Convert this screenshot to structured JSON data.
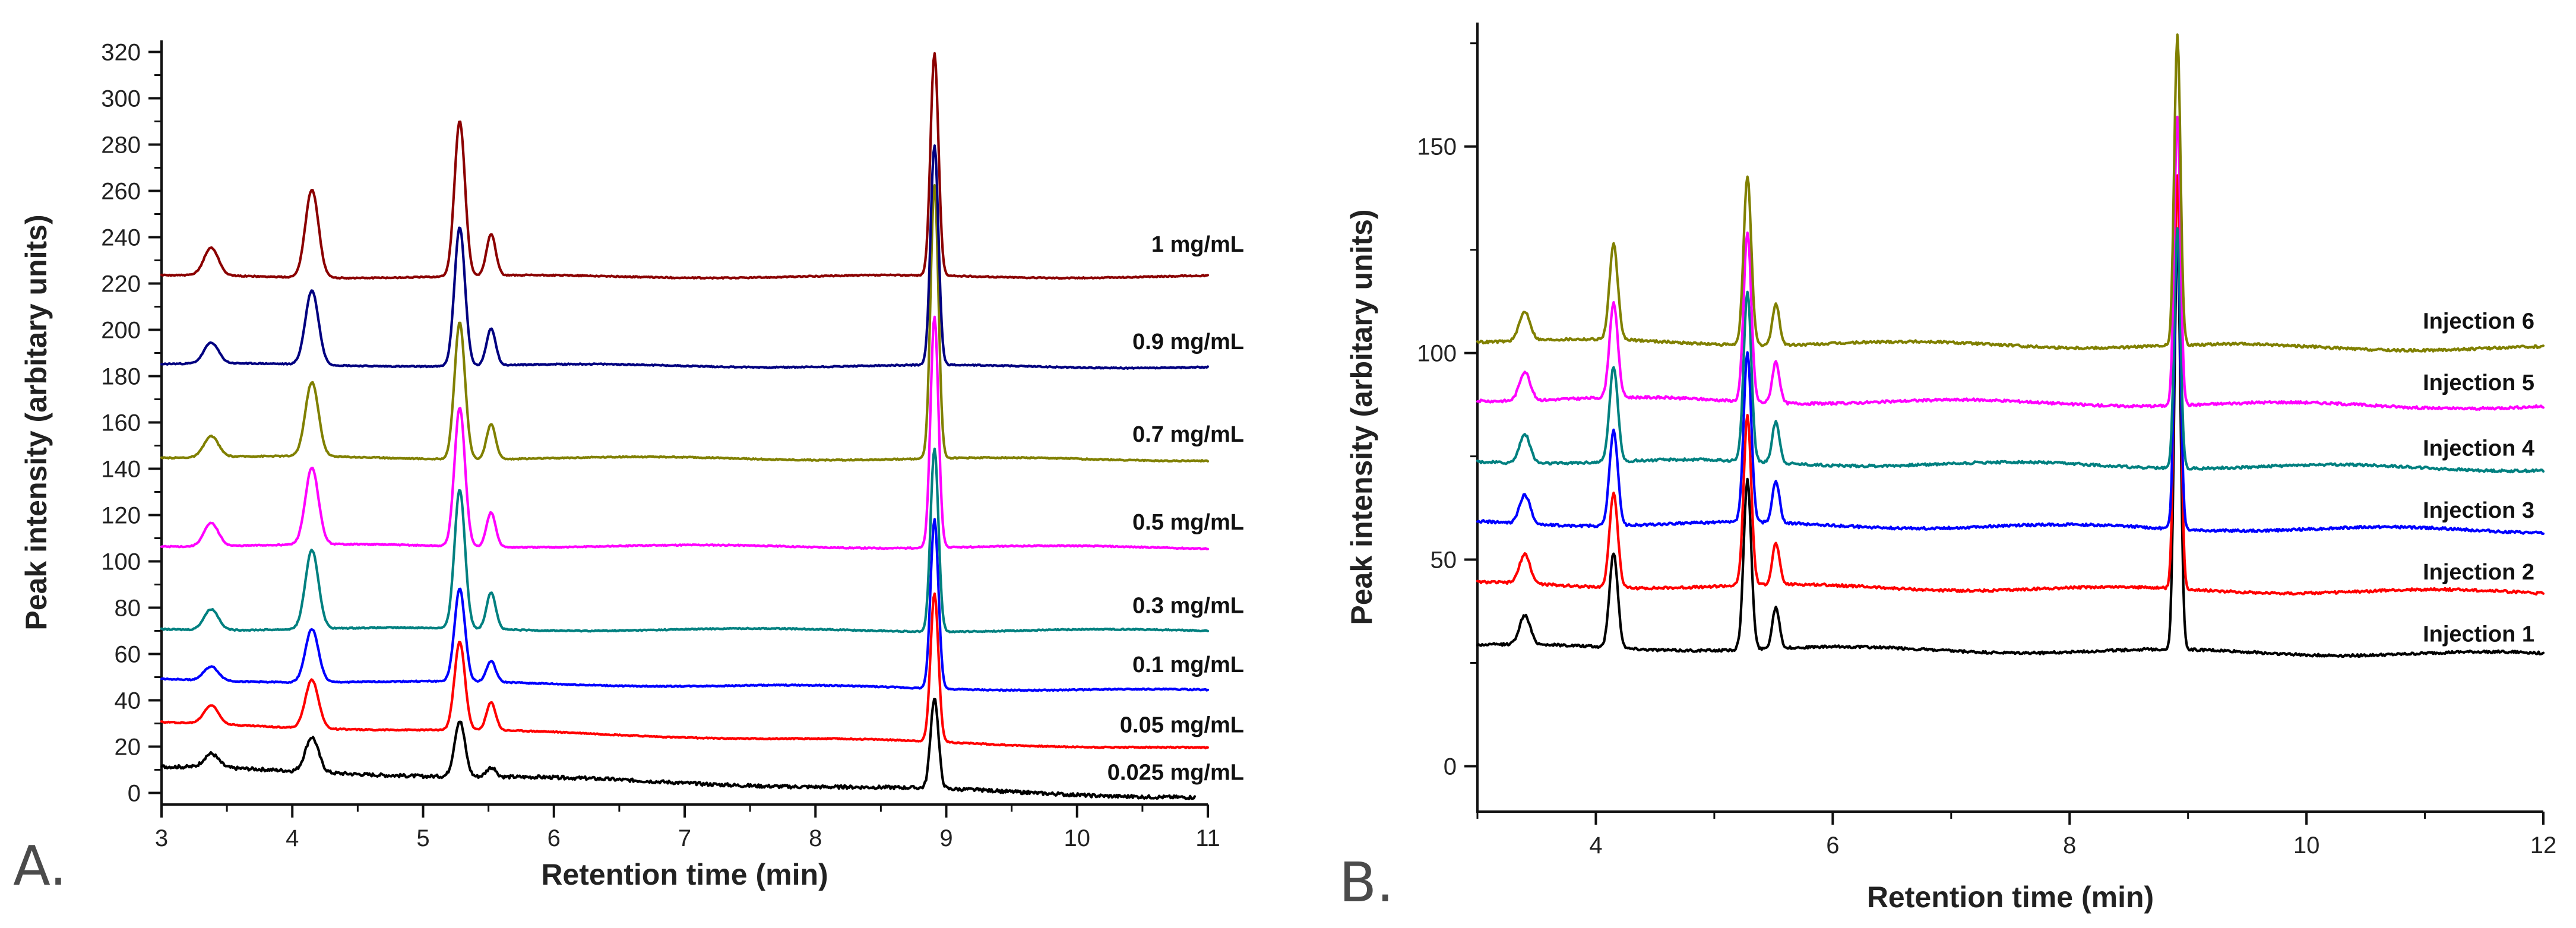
{
  "chart_data": [
    {
      "panel": "A.",
      "type": "line",
      "xlabel": "Retention time (min)",
      "ylabel": "Peak intensity (arbitary units)",
      "xlim": [
        3,
        11
      ],
      "ylim": [
        -5,
        325
      ],
      "xticks": [
        3,
        4,
        5,
        6,
        7,
        8,
        9,
        10,
        11
      ],
      "yticks": [
        0,
        20,
        40,
        60,
        80,
        100,
        120,
        140,
        160,
        180,
        200,
        220,
        240,
        260,
        280,
        300,
        320
      ],
      "legend_placement": "right of traces, aligned with each baseline",
      "series": [
        {
          "name": "0.025 mg/mL",
          "color": "#000000",
          "baseline_start": 11,
          "baseline_end": -2,
          "x_end": 10.9,
          "peaks": [
            [
              3.38,
              6
            ],
            [
              4.15,
              15
            ],
            [
              5.28,
              24
            ],
            [
              5.52,
              4
            ],
            [
              8.91,
              39
            ]
          ]
        },
        {
          "name": "0.05 mg/mL",
          "color": "#ff0000",
          "baseline_start": 30,
          "baseline_end": 19,
          "x_end": 11,
          "peaks": [
            [
              3.38,
              8
            ],
            [
              4.15,
              21
            ],
            [
              5.28,
              38
            ],
            [
              5.52,
              12
            ],
            [
              8.91,
              64
            ]
          ]
        },
        {
          "name": "0.1 mg/mL",
          "color": "#0000ff",
          "baseline_start": 49,
          "baseline_end": 44,
          "x_end": 11,
          "peaks": [
            [
              3.38,
              6
            ],
            [
              4.15,
              23
            ],
            [
              5.28,
              40
            ],
            [
              5.52,
              9
            ],
            [
              8.91,
              73
            ]
          ]
        },
        {
          "name": "0.3 mg/mL",
          "color": "#008080",
          "baseline_start": 71,
          "baseline_end": 70,
          "x_end": 11,
          "peaks": [
            [
              3.38,
              9
            ],
            [
              4.15,
              34
            ],
            [
              5.28,
              60
            ],
            [
              5.52,
              16
            ],
            [
              8.91,
              79
            ]
          ]
        },
        {
          "name": "0.5 mg/mL",
          "color": "#ff00ff",
          "baseline_start": 107,
          "baseline_end": 106,
          "x_end": 11,
          "peaks": [
            [
              3.38,
              10
            ],
            [
              4.15,
              33
            ],
            [
              5.28,
              60
            ],
            [
              5.52,
              15
            ],
            [
              8.91,
              100
            ]
          ]
        },
        {
          "name": "0.7 mg/mL",
          "color": "#808000",
          "baseline_start": 145,
          "baseline_end": 144,
          "x_end": 11,
          "peaks": [
            [
              3.38,
              9
            ],
            [
              4.15,
              32
            ],
            [
              5.28,
              59
            ],
            [
              5.52,
              15
            ],
            [
              8.91,
              118
            ]
          ]
        },
        {
          "name": "0.9 mg/mL",
          "color": "#000080",
          "baseline_start": 185,
          "baseline_end": 184,
          "x_end": 11,
          "peaks": [
            [
              3.38,
              9
            ],
            [
              4.15,
              32
            ],
            [
              5.28,
              60
            ],
            [
              5.52,
              16
            ],
            [
              8.91,
              95
            ]
          ]
        },
        {
          "name": "1 mg/mL",
          "color": "#8b0000",
          "baseline_start": 223,
          "baseline_end": 223,
          "x_end": 11,
          "peaks": [
            [
              3.38,
              12
            ],
            [
              4.15,
              38
            ],
            [
              5.28,
              67
            ],
            [
              5.52,
              18
            ],
            [
              8.91,
              96
            ]
          ]
        }
      ]
    },
    {
      "panel": "B.",
      "type": "line",
      "xlabel": "Retention time (min)",
      "ylabel": "Peak intensity (arbitary units)",
      "xlim": [
        3,
        12
      ],
      "ylim": [
        -11,
        180
      ],
      "xticks": [
        4,
        6,
        8,
        10,
        12
      ],
      "yticks": [
        0,
        50,
        100,
        150
      ],
      "legend_placement": "right of traces, aligned with each baseline",
      "series": [
        {
          "name": "Injection 1",
          "color": "#000000",
          "baseline_start": 29,
          "baseline_end": 27,
          "x_end": 12,
          "peaks": [
            [
              3.4,
              7
            ],
            [
              4.15,
              23
            ],
            [
              5.28,
              41
            ],
            [
              5.52,
              10
            ],
            [
              8.91,
              100
            ]
          ]
        },
        {
          "name": "Injection 2",
          "color": "#ff0000",
          "baseline_start": 44,
          "baseline_end": 42,
          "x_end": 12,
          "peaks": [
            [
              3.4,
              7
            ],
            [
              4.15,
              23
            ],
            [
              5.28,
              41
            ],
            [
              5.52,
              10
            ],
            [
              8.91,
              100
            ]
          ]
        },
        {
          "name": "Injection 3",
          "color": "#0000ff",
          "baseline_start": 59,
          "baseline_end": 57,
          "x_end": 12,
          "peaks": [
            [
              3.4,
              7
            ],
            [
              4.15,
              23
            ],
            [
              5.28,
              41
            ],
            [
              5.52,
              10
            ],
            [
              8.91,
              72
            ]
          ]
        },
        {
          "name": "Injection 4",
          "color": "#008080",
          "baseline_start": 74,
          "baseline_end": 72,
          "x_end": 12,
          "peaks": [
            [
              3.4,
              7
            ],
            [
              4.15,
              23
            ],
            [
              5.28,
              41
            ],
            [
              5.52,
              10
            ],
            [
              8.91,
              58
            ]
          ]
        },
        {
          "name": "Injection 5",
          "color": "#ff00ff",
          "baseline_start": 89,
          "baseline_end": 87,
          "x_end": 12,
          "peaks": [
            [
              3.4,
              7
            ],
            [
              4.15,
              23
            ],
            [
              5.28,
              41
            ],
            [
              5.52,
              10
            ],
            [
              8.91,
              70
            ]
          ]
        },
        {
          "name": "Injection 6",
          "color": "#808000",
          "baseline_start": 103,
          "baseline_end": 101,
          "x_end": 12,
          "peaks": [
            [
              3.4,
              7
            ],
            [
              4.15,
              23
            ],
            [
              5.28,
              41
            ],
            [
              5.52,
              10
            ],
            [
              8.91,
              75
            ]
          ]
        }
      ]
    }
  ]
}
